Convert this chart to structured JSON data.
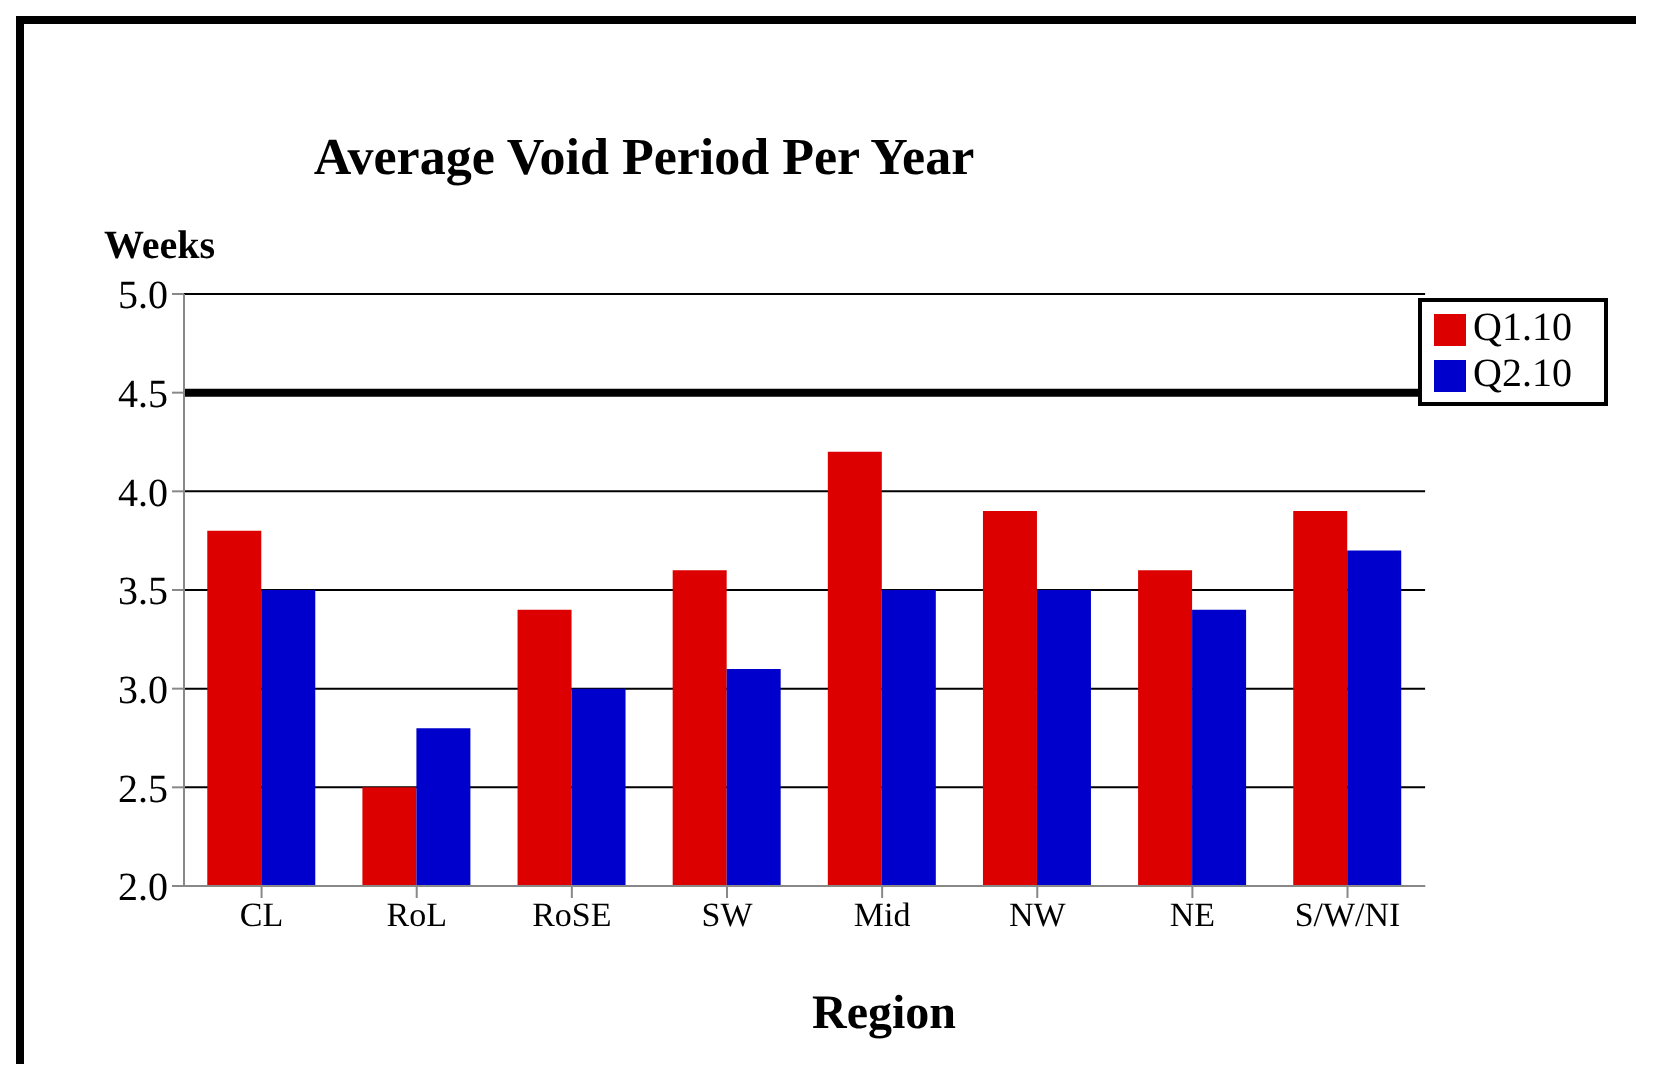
{
  "chart_data": {
    "type": "bar",
    "title": "Average Void Period Per Year",
    "xlabel": "Region",
    "ylabel": "Weeks",
    "categories": [
      "CL",
      "RoL",
      "RoSE",
      "SW",
      "Mid",
      "NW",
      "NE",
      "S/W/NI"
    ],
    "series": [
      {
        "name": "Q1.10",
        "color": "#dd0000",
        "values": [
          3.8,
          2.5,
          3.4,
          3.6,
          4.2,
          3.9,
          3.6,
          3.9
        ]
      },
      {
        "name": "Q2.10",
        "color": "#0000cc",
        "values": [
          3.5,
          2.8,
          3.0,
          3.1,
          3.5,
          3.5,
          3.4,
          3.7
        ]
      }
    ],
    "ylim": [
      2.0,
      5.0
    ],
    "yticks": [
      {
        "value": 2.0,
        "label": "2.0"
      },
      {
        "value": 2.5,
        "label": "2.5"
      },
      {
        "value": 3.0,
        "label": "3.0"
      },
      {
        "value": 3.5,
        "label": "3.5"
      },
      {
        "value": 4.0,
        "label": "4.0"
      },
      {
        "value": 4.5,
        "label": "4.5"
      },
      {
        "value": 5.0,
        "label": "5.0"
      }
    ],
    "grid": "y",
    "legend": "top right",
    "ref_lines": [
      {
        "axis": "y",
        "value": 4.5,
        "color": "#000000"
      }
    ]
  }
}
